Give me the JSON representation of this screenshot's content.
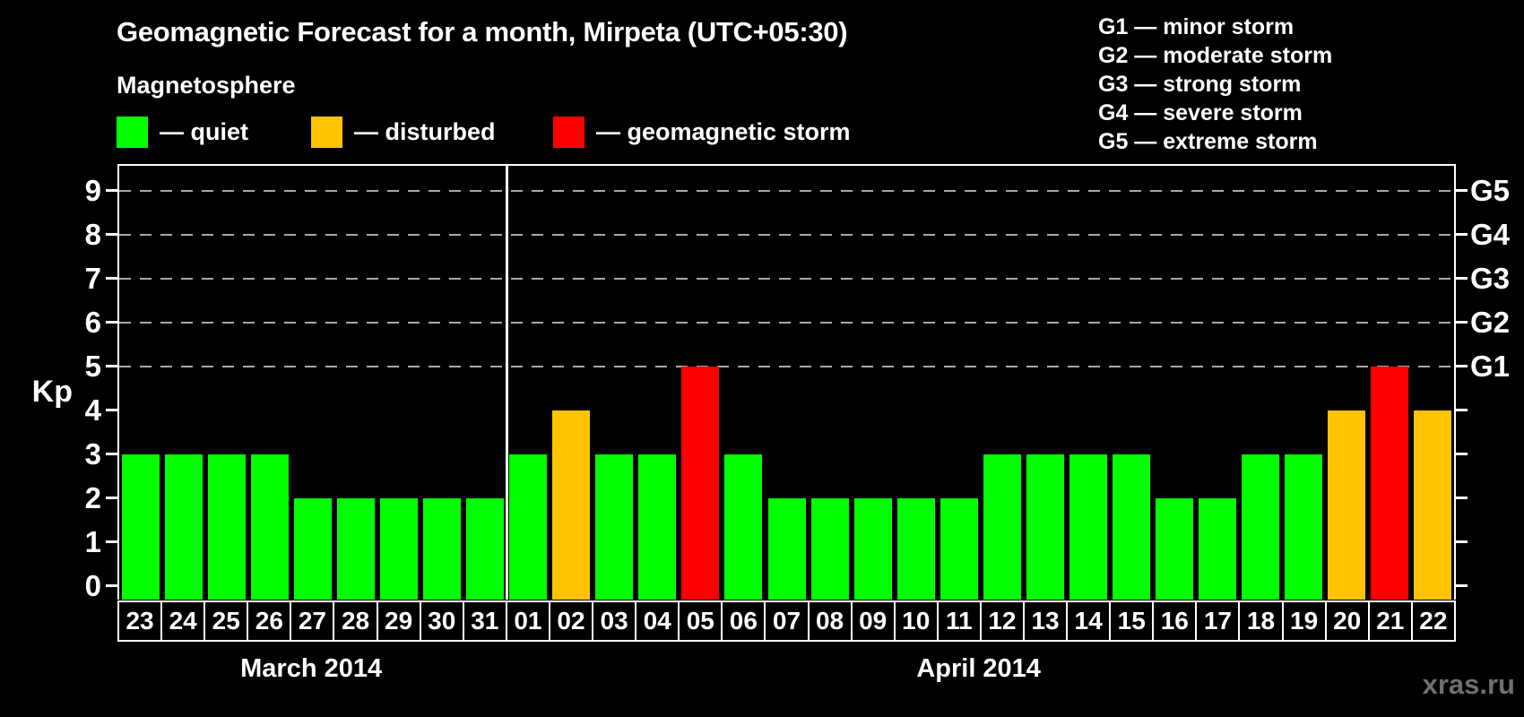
{
  "title": "Geomagnetic Forecast for a month, Mirpeta (UTC+05:30)",
  "magnetosphere_label": "Magnetosphere",
  "legend": {
    "items": [
      {
        "key": "quiet",
        "label": "— quiet",
        "color": "#00ff00"
      },
      {
        "key": "disturbed",
        "label": "— disturbed",
        "color": "#ffc300"
      },
      {
        "key": "storm",
        "label": "— geomagnetic storm",
        "color": "#ff0000"
      }
    ]
  },
  "g_legend": {
    "items": [
      "G1 — minor storm",
      "G2 — moderate storm",
      "G3 — strong storm",
      "G4 — severe storm",
      "G5 — extreme storm"
    ]
  },
  "watermark": "xras.ru",
  "colors": {
    "background": "#000000",
    "text": "#ffffff",
    "quiet": "#00ff00",
    "disturbed": "#ffc300",
    "storm": "#ff0000",
    "gridline": "#a8a8a8",
    "watermark": "#6f6f6f"
  },
  "chart_data": {
    "type": "bar",
    "title": "Geomagnetic Forecast for a month, Mirpeta (UTC+05:30)",
    "xlabel": "",
    "ylabel": "Kp",
    "ylim": [
      0,
      9.5
    ],
    "yticks": [
      0,
      1,
      2,
      3,
      4,
      5,
      6,
      7,
      8,
      9
    ],
    "gridlines_at": [
      5,
      6,
      7,
      8,
      9
    ],
    "grid": "dashed horizontal lines at storm levels G1–G5",
    "legend_position": "top-left",
    "right_axis": [
      {
        "value": 5,
        "label": "G1"
      },
      {
        "value": 6,
        "label": "G2"
      },
      {
        "value": 7,
        "label": "G3"
      },
      {
        "value": 8,
        "label": "G4"
      },
      {
        "value": 9,
        "label": "G5"
      }
    ],
    "months": [
      {
        "label": "March 2014",
        "days": [
          "23",
          "24",
          "25",
          "26",
          "27",
          "28",
          "29",
          "30",
          "31"
        ]
      },
      {
        "label": "April 2014",
        "days": [
          "01",
          "02",
          "03",
          "04",
          "05",
          "06",
          "07",
          "08",
          "09",
          "10",
          "11",
          "12",
          "13",
          "14",
          "15",
          "16",
          "17",
          "18",
          "19",
          "20",
          "21",
          "22"
        ]
      }
    ],
    "bars": [
      {
        "month": "March 2014",
        "day": "23",
        "kp": 3,
        "condition": "quiet"
      },
      {
        "month": "March 2014",
        "day": "24",
        "kp": 3,
        "condition": "quiet"
      },
      {
        "month": "March 2014",
        "day": "25",
        "kp": 3,
        "condition": "quiet"
      },
      {
        "month": "March 2014",
        "day": "26",
        "kp": 3,
        "condition": "quiet"
      },
      {
        "month": "March 2014",
        "day": "27",
        "kp": 2,
        "condition": "quiet"
      },
      {
        "month": "March 2014",
        "day": "28",
        "kp": 2,
        "condition": "quiet"
      },
      {
        "month": "March 2014",
        "day": "29",
        "kp": 2,
        "condition": "quiet"
      },
      {
        "month": "March 2014",
        "day": "30",
        "kp": 2,
        "condition": "quiet"
      },
      {
        "month": "March 2014",
        "day": "31",
        "kp": 2,
        "condition": "quiet"
      },
      {
        "month": "April 2014",
        "day": "01",
        "kp": 3,
        "condition": "quiet"
      },
      {
        "month": "April 2014",
        "day": "02",
        "kp": 4,
        "condition": "disturbed"
      },
      {
        "month": "April 2014",
        "day": "03",
        "kp": 3,
        "condition": "quiet"
      },
      {
        "month": "April 2014",
        "day": "04",
        "kp": 3,
        "condition": "quiet"
      },
      {
        "month": "April 2014",
        "day": "05",
        "kp": 5,
        "condition": "storm"
      },
      {
        "month": "April 2014",
        "day": "06",
        "kp": 3,
        "condition": "quiet"
      },
      {
        "month": "April 2014",
        "day": "07",
        "kp": 2,
        "condition": "quiet"
      },
      {
        "month": "April 2014",
        "day": "08",
        "kp": 2,
        "condition": "quiet"
      },
      {
        "month": "April 2014",
        "day": "09",
        "kp": 2,
        "condition": "quiet"
      },
      {
        "month": "April 2014",
        "day": "10",
        "kp": 2,
        "condition": "quiet"
      },
      {
        "month": "April 2014",
        "day": "11",
        "kp": 2,
        "condition": "quiet"
      },
      {
        "month": "April 2014",
        "day": "12",
        "kp": 3,
        "condition": "quiet"
      },
      {
        "month": "April 2014",
        "day": "13",
        "kp": 3,
        "condition": "quiet"
      },
      {
        "month": "April 2014",
        "day": "14",
        "kp": 3,
        "condition": "quiet"
      },
      {
        "month": "April 2014",
        "day": "15",
        "kp": 3,
        "condition": "quiet"
      },
      {
        "month": "April 2014",
        "day": "16",
        "kp": 2,
        "condition": "quiet"
      },
      {
        "month": "April 2014",
        "day": "17",
        "kp": 2,
        "condition": "quiet"
      },
      {
        "month": "April 2014",
        "day": "18",
        "kp": 3,
        "condition": "quiet"
      },
      {
        "month": "April 2014",
        "day": "19",
        "kp": 3,
        "condition": "quiet"
      },
      {
        "month": "April 2014",
        "day": "20",
        "kp": 4,
        "condition": "disturbed"
      },
      {
        "month": "April 2014",
        "day": "21",
        "kp": 5,
        "condition": "storm"
      },
      {
        "month": "April 2014",
        "day": "22",
        "kp": 4,
        "condition": "disturbed"
      }
    ]
  }
}
